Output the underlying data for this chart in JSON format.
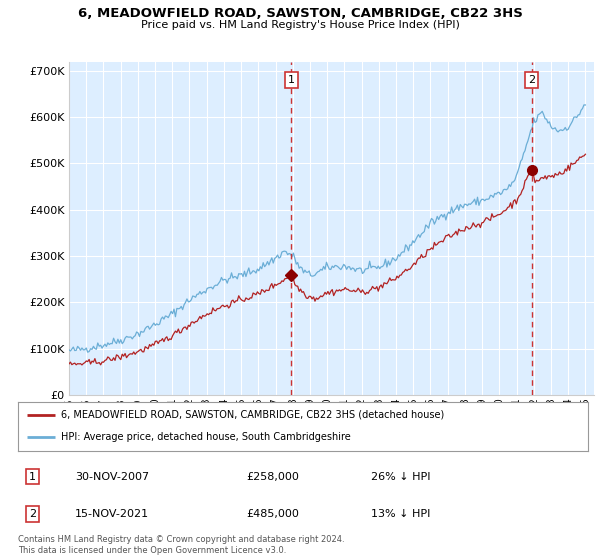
{
  "title": "6, MEADOWFIELD ROAD, SAWSTON, CAMBRIDGE, CB22 3HS",
  "subtitle": "Price paid vs. HM Land Registry's House Price Index (HPI)",
  "legend_line1": "6, MEADOWFIELD ROAD, SAWSTON, CAMBRIDGE, CB22 3HS (detached house)",
  "legend_line2": "HPI: Average price, detached house, South Cambridgeshire",
  "transaction1_date": "30-NOV-2007",
  "transaction1_price": "£258,000",
  "transaction1_hpi": "26% ↓ HPI",
  "transaction2_date": "15-NOV-2021",
  "transaction2_price": "£485,000",
  "transaction2_hpi": "13% ↓ HPI",
  "footer": "Contains HM Land Registry data © Crown copyright and database right 2024.\nThis data is licensed under the Open Government Licence v3.0.",
  "hpi_color": "#6baed6",
  "price_color": "#b22222",
  "vline_color": "#cc3333",
  "dot_color": "#8b0000",
  "background_color": "#ffffff",
  "chart_bg_color": "#ddeeff",
  "grid_color": "#cccccc",
  "ylim": [
    0,
    720000
  ],
  "yticks": [
    0,
    100000,
    200000,
    300000,
    400000,
    500000,
    600000,
    700000
  ],
  "ytick_labels": [
    "£0",
    "£100K",
    "£200K",
    "£300K",
    "£400K",
    "£500K",
    "£600K",
    "£700K"
  ],
  "tx1_x": 2007.917,
  "tx1_y": 258000,
  "tx2_x": 2021.875,
  "tx2_y": 485000,
  "xmin": 1995.0,
  "xmax": 2025.5
}
